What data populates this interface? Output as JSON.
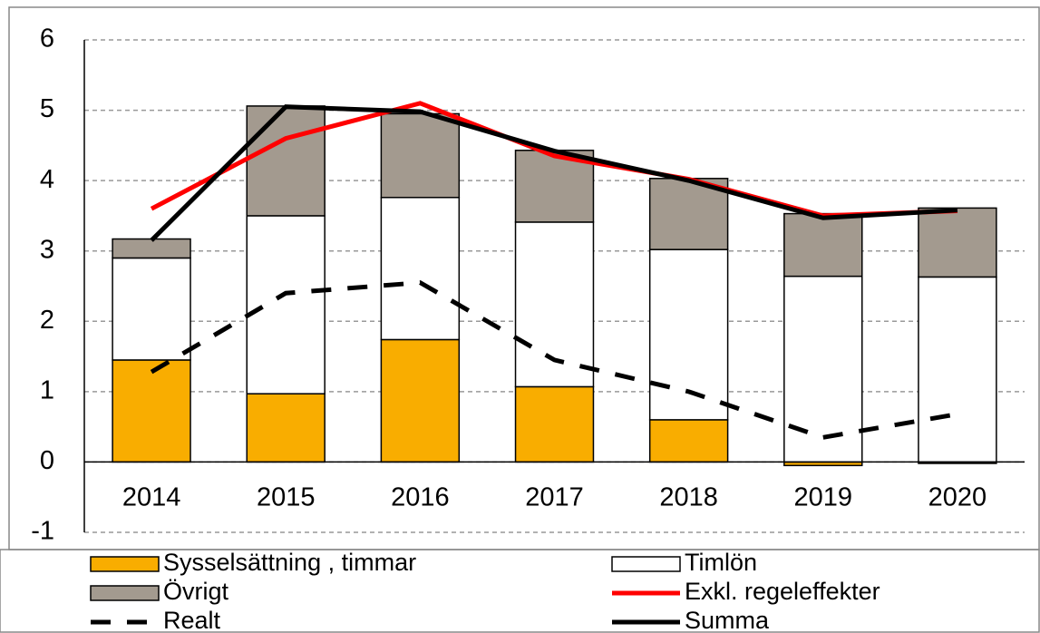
{
  "chart_data": {
    "type": "bar",
    "categories": [
      "2014",
      "2015",
      "2016",
      "2017",
      "2018",
      "2019",
      "2020"
    ],
    "series": [
      {
        "name": "Sysselsättning , timmar",
        "type": "bar",
        "color": "#f9ad00",
        "values": [
          1.45,
          0.97,
          1.74,
          1.07,
          0.6,
          -0.05,
          -0.02
        ]
      },
      {
        "name": "Timlön",
        "type": "bar",
        "color": "#ffffff",
        "values": [
          1.45,
          2.53,
          2.02,
          2.34,
          2.42,
          2.64,
          2.63
        ]
      },
      {
        "name": "Övrigt",
        "type": "bar",
        "color": "#a39a8f",
        "values": [
          0.27,
          1.56,
          1.19,
          1.02,
          1.01,
          0.89,
          0.98
        ]
      },
      {
        "name": "Exkl. regeleffekter",
        "type": "line",
        "color": "#ff0000",
        "values": [
          3.6,
          4.6,
          5.1,
          4.35,
          4.02,
          3.5,
          3.57
        ]
      },
      {
        "name": "Realt",
        "type": "line",
        "style": "dashed",
        "color": "#000000",
        "values": [
          1.28,
          2.4,
          2.55,
          1.45,
          1.0,
          0.35,
          0.68
        ]
      },
      {
        "name": "Summa",
        "type": "line",
        "color": "#000000",
        "values": [
          3.15,
          5.05,
          4.98,
          4.42,
          4.0,
          3.47,
          3.58
        ]
      }
    ],
    "ylim": [
      -1,
      6
    ],
    "yticks": [
      -1,
      0,
      1,
      2,
      3,
      4,
      5,
      6
    ],
    "grid": true
  }
}
